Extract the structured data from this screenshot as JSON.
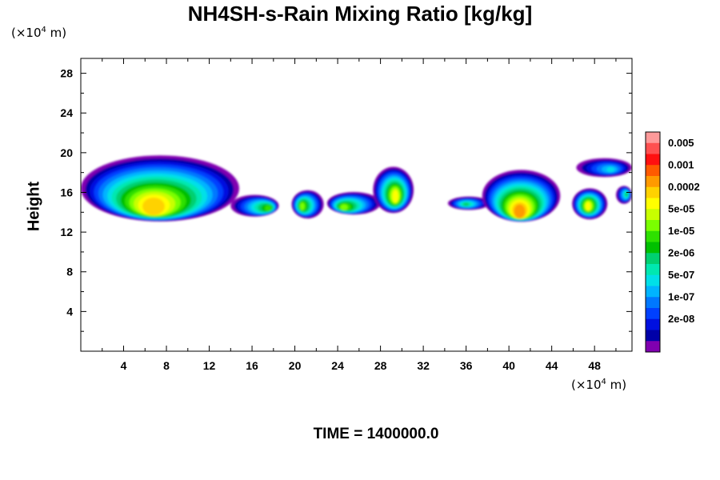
{
  "chart_data": {
    "type": "heatmap",
    "title": "NH4SH-s-Rain Mixing Ratio [kg/kg]",
    "ylabel": "Height",
    "xunit": {
      "prefix": "(×10",
      "exp": "4",
      "suffix": " m)"
    },
    "yunit": {
      "prefix": "(×10",
      "exp": "4",
      "suffix": " m)"
    },
    "xlim": [
      0,
      51.5
    ],
    "ylim": [
      0,
      29.5
    ],
    "xticks": [
      4,
      8,
      12,
      16,
      20,
      24,
      28,
      32,
      36,
      40,
      44,
      48
    ],
    "yticks": [
      4,
      8,
      12,
      16,
      20,
      24,
      28
    ],
    "colorbar": {
      "labels": [
        "0.005",
        "0.001",
        "0.0002",
        "5e-05",
        "1e-05",
        "2e-06",
        "5e-07",
        "1e-07",
        "2e-08"
      ],
      "colors": [
        "#ff9a9a",
        "#ff5050",
        "#ff1010",
        "#ff5a00",
        "#ff9a00",
        "#ffd200",
        "#ffff00",
        "#c8ff00",
        "#7aff00",
        "#2ee000",
        "#00c000",
        "#00d070",
        "#00e8b0",
        "#00e0e8",
        "#00b4ff",
        "#0078ff",
        "#0040ff",
        "#0010e0",
        "#0000a8",
        "#8000b0"
      ]
    },
    "features": [
      {
        "x": [
          0,
          14.8
        ],
        "y": [
          12.9,
          19.9
        ],
        "peak_level": 5,
        "peak_x": 6.8,
        "peak_y": 14.6
      },
      {
        "x": [
          14,
          18.5
        ],
        "y": [
          13.5,
          15.8
        ],
        "peak_level": 9,
        "peak_x": 17.5,
        "peak_y": 14.4
      },
      {
        "x": [
          19.7,
          22.7
        ],
        "y": [
          13.3,
          16.3
        ],
        "peak_level": 8,
        "peak_x": 20.7,
        "peak_y": 14.6
      },
      {
        "x": [
          23,
          28
        ],
        "y": [
          13.7,
          16.1
        ],
        "peak_level": 8,
        "peak_x": 24.6,
        "peak_y": 14.5
      },
      {
        "x": [
          27.3,
          31.1
        ],
        "y": [
          13.8,
          18.7
        ],
        "peak_level": 6,
        "peak_x": 29.4,
        "peak_y": 15.6
      },
      {
        "x": [
          34.3,
          38.2
        ],
        "y": [
          14.2,
          15.6
        ],
        "peak_level": 11,
        "peak_x": 36,
        "peak_y": 14.8
      },
      {
        "x": [
          37.5,
          44.8
        ],
        "y": [
          12.9,
          18.4
        ],
        "peak_level": 4,
        "peak_x": 41,
        "peak_y": 14.1
      },
      {
        "x": [
          45.9,
          49.2
        ],
        "y": [
          13.2,
          16.5
        ],
        "peak_level": 6,
        "peak_x": 47.4,
        "peak_y": 14.6
      },
      {
        "x": [
          46.3,
          51.5
        ],
        "y": [
          17.5,
          19.5
        ],
        "peak_level": 13,
        "peak_x": 49.5,
        "peak_y": 18.3
      },
      {
        "x": [
          50,
          51.5
        ],
        "y": [
          14.8,
          16.7
        ],
        "peak_level": 11,
        "peak_x": 51,
        "peak_y": 15.8
      }
    ]
  },
  "footer": {
    "time": "TIME = 1400000.0"
  }
}
